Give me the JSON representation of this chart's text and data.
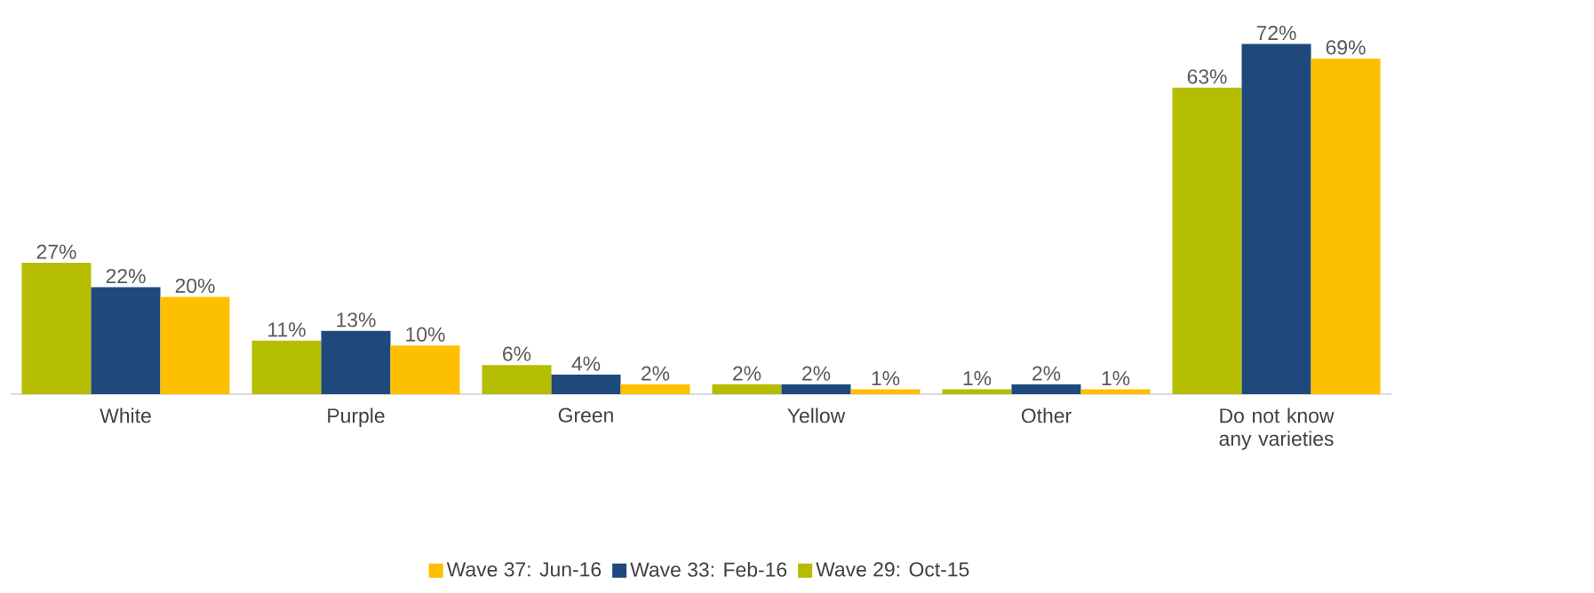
{
  "chart_data": {
    "type": "bar",
    "categories": [
      "White",
      "Purple",
      "Green",
      "Yellow",
      "Other",
      "Do not know any varieties"
    ],
    "series": [
      {
        "name": "Wave 29: Oct-15",
        "color": "#b5bd00",
        "values": [
          27,
          11,
          6,
          2,
          1,
          63
        ],
        "value_labels": [
          "27%",
          "11%",
          "6%",
          "2%",
          "1%",
          "63%"
        ]
      },
      {
        "name": "Wave 33: Feb-16",
        "color": "#1f497d",
        "values": [
          22,
          13,
          4,
          2,
          2,
          72
        ],
        "value_labels": [
          "22%",
          "13%",
          "4%",
          "2%",
          "2%",
          "72%"
        ]
      },
      {
        "name": "Wave 37: Jun-16",
        "color": "#fdc000",
        "values": [
          20,
          10,
          2,
          1,
          1,
          69
        ],
        "value_labels": [
          "20%",
          "10%",
          "2%",
          "1%",
          "1%",
          "69%"
        ]
      }
    ],
    "legend": "bottom"
  }
}
